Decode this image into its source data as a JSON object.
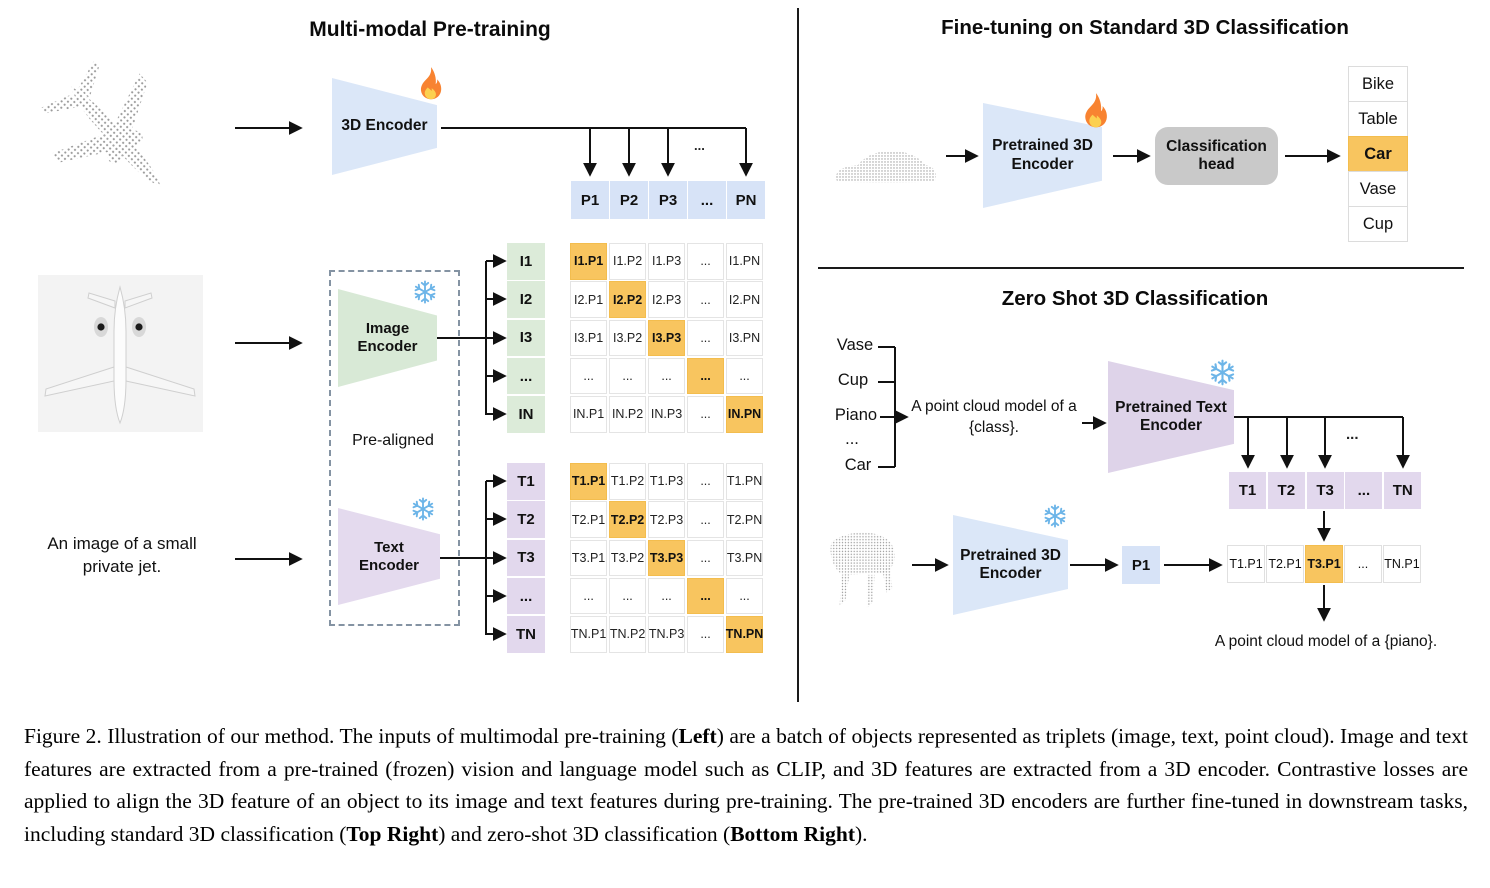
{
  "figure": {
    "pretraining": {
      "title": "Multi-modal Pre-training",
      "encoder_label": "3D Encoder",
      "image_encoder_label": "Image Encoder",
      "text_encoder_label": "Text Encoder",
      "prealigned_label": "Pre-aligned",
      "text_input": "An image of a small private jet.",
      "ellipsis": "...",
      "p_row": [
        "P1",
        "P2",
        "P3",
        "...",
        "PN"
      ],
      "i_labels": [
        "I1",
        "I2",
        "I3",
        "...",
        "IN"
      ],
      "i_matrix": [
        [
          "I1.P1",
          "I1.P2",
          "I1.P3",
          "...",
          "I1.PN"
        ],
        [
          "I2.P1",
          "I2.P2",
          "I2.P3",
          "...",
          "I2.PN"
        ],
        [
          "I3.P1",
          "I3.P2",
          "I3.P3",
          "...",
          "I3.PN"
        ],
        [
          "...",
          "...",
          "...",
          "...",
          "..."
        ],
        [
          "IN.P1",
          "IN.P2",
          "IN.P3",
          "...",
          "IN.PN"
        ]
      ],
      "t_labels": [
        "T1",
        "T2",
        "T3",
        "...",
        "TN"
      ],
      "t_matrix": [
        [
          "T1.P1",
          "T1.P2",
          "T1.P3",
          "...",
          "T1.PN"
        ],
        [
          "T2.P1",
          "T2.P2",
          "T2.P3",
          "...",
          "T2.PN"
        ],
        [
          "T3.P1",
          "T3.P2",
          "T3.P3",
          "...",
          "T3.PN"
        ],
        [
          "...",
          "...",
          "...",
          "...",
          "..."
        ],
        [
          "TN.P1",
          "TN.P2",
          "TN.P3",
          "...",
          "TN.PN"
        ]
      ]
    },
    "finetune": {
      "title": "Fine-tuning on Standard 3D Classification",
      "encoder_label": "Pretrained 3D Encoder",
      "head_label": "Classification head",
      "classes": [
        "Bike",
        "Table",
        "Car",
        "Vase",
        "Cup"
      ],
      "predicted_class": "Car",
      "predicted_index": 2
    },
    "zeroshot": {
      "title": "Zero Shot 3D Classification",
      "classes": [
        "Vase",
        "Cup",
        "Piano",
        "...",
        "Car"
      ],
      "prompt": "A point cloud model of a {class}.",
      "text_encoder_label": "Pretrained Text Encoder",
      "encoder_label": "Pretrained 3D Encoder",
      "p_cell": "P1",
      "t_row": [
        "T1",
        "T2",
        "T3",
        "...",
        "TN"
      ],
      "sim_row": [
        "T1.P1",
        "T2.P1",
        "T3.P1",
        "...",
        "TN.P1"
      ],
      "sim_highlight_index": 2,
      "result_text": "A point cloud model of a {piano}.",
      "ellipsis": "..."
    },
    "icons": {
      "trainable": "fire-icon",
      "frozen": "snowflake-icon"
    },
    "colors": {
      "encoder_blue": "#dbe7f8",
      "encoder_green": "#d8e9d6",
      "encoder_purple": "#e4daee",
      "highlight_orange": "#f8c55f",
      "head_gray": "#c9c9c9"
    }
  },
  "caption": {
    "segments": [
      {
        "text": "Figure 2. Illustration of our method. The inputs of multimodal pre-training (",
        "bold": false
      },
      {
        "text": "Left",
        "bold": true
      },
      {
        "text": ") are a batch of objects represented as triplets (image, text, point cloud). Image and text features are extracted from a pre-trained (frozen) vision and language model such as CLIP, and 3D features are extracted from a 3D encoder. Contrastive losses are applied to align the 3D feature of an object to its image and text features during pre-training. The pre-trained 3D encoders are further fine-tuned in downstream tasks, including standard 3D classification (",
        "bold": false
      },
      {
        "text": "Top Right",
        "bold": true
      },
      {
        "text": ") and zero-shot 3D classification (",
        "bold": false
      },
      {
        "text": "Bottom Right",
        "bold": true
      },
      {
        "text": ").",
        "bold": false
      }
    ]
  }
}
